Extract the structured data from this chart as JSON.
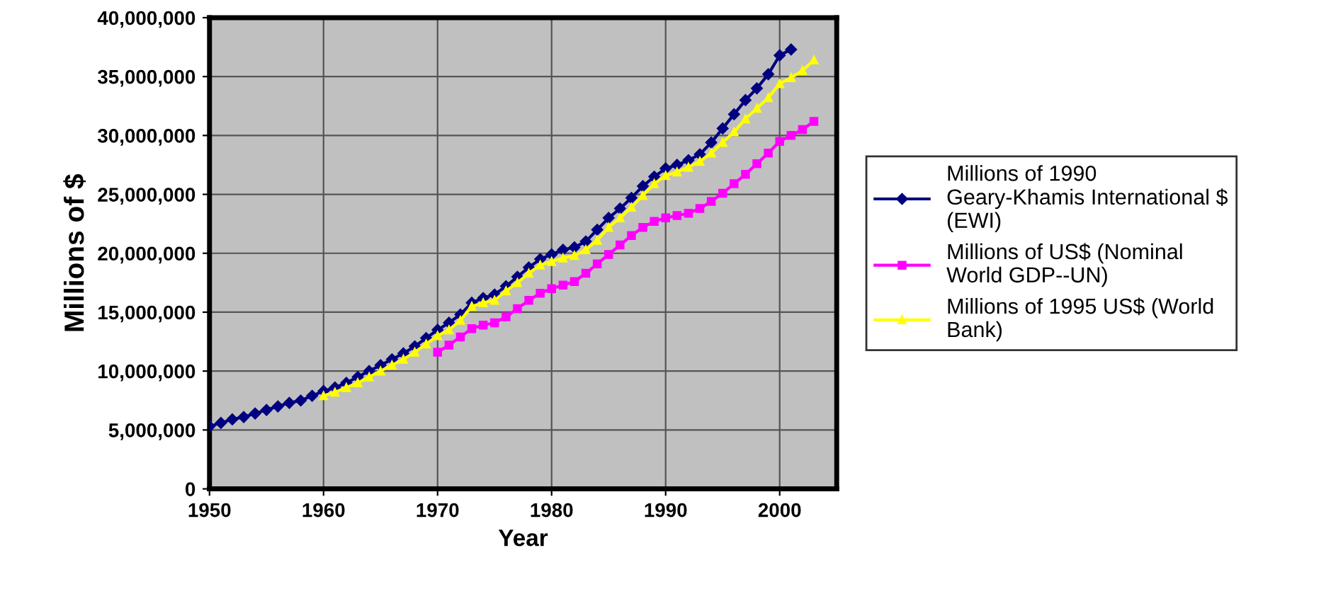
{
  "chart_data": {
    "type": "line",
    "xlabel": "Year",
    "ylabel": "Millions of $",
    "xlim": [
      1950,
      2005
    ],
    "xticks": [
      1950,
      1960,
      1970,
      1980,
      1990,
      2000
    ],
    "ylim": [
      0,
      40000000
    ],
    "yticks": [
      {
        "value": 0,
        "label": "0"
      },
      {
        "value": 5000000,
        "label": "5,000,000"
      },
      {
        "value": 10000000,
        "label": "10,000,000"
      },
      {
        "value": 15000000,
        "label": "15,000,000"
      },
      {
        "value": 20000000,
        "label": "20,000,000"
      },
      {
        "value": 25000000,
        "label": "25,000,000"
      },
      {
        "value": 30000000,
        "label": "30,000,000"
      },
      {
        "value": 35000000,
        "label": "35,000,000"
      },
      {
        "value": 40000000,
        "label": "40,000,000"
      }
    ],
    "grid": true,
    "legend": "right",
    "series": [
      {
        "name": "Millions of 1990 Geary-Khamis International $ (EWI)",
        "color": "#000080",
        "marker": "diamond",
        "x": [
          1950,
          1951,
          1952,
          1953,
          1954,
          1955,
          1956,
          1957,
          1958,
          1959,
          1960,
          1961,
          1962,
          1963,
          1964,
          1965,
          1966,
          1967,
          1968,
          1969,
          1970,
          1971,
          1972,
          1973,
          1974,
          1975,
          1976,
          1977,
          1978,
          1979,
          1980,
          1981,
          1982,
          1983,
          1984,
          1985,
          1986,
          1987,
          1988,
          1989,
          1990,
          1991,
          1992,
          1993,
          1994,
          1995,
          1996,
          1997,
          1998,
          1999,
          2000,
          2001
        ],
        "values": [
          5300000,
          5600000,
          5900000,
          6100000,
          6400000,
          6700000,
          7000000,
          7300000,
          7500000,
          7900000,
          8300000,
          8600000,
          9000000,
          9500000,
          10000000,
          10500000,
          11000000,
          11500000,
          12100000,
          12800000,
          13500000,
          14100000,
          14800000,
          15800000,
          16200000,
          16500000,
          17200000,
          18000000,
          18800000,
          19500000,
          19900000,
          20300000,
          20500000,
          21000000,
          22000000,
          23000000,
          23800000,
          24700000,
          25700000,
          26500000,
          27200000,
          27500000,
          27900000,
          28400000,
          29400000,
          30600000,
          31800000,
          33000000,
          34000000,
          35200000,
          36800000,
          37300000
        ]
      },
      {
        "name": "Millions of US$ (Nominal World GDP--UN)",
        "color": "#ff00ff",
        "marker": "square",
        "x": [
          1970,
          1971,
          1972,
          1973,
          1974,
          1975,
          1976,
          1977,
          1978,
          1979,
          1980,
          1981,
          1982,
          1983,
          1984,
          1985,
          1986,
          1987,
          1988,
          1989,
          1990,
          1991,
          1992,
          1993,
          1994,
          1995,
          1996,
          1997,
          1998,
          1999,
          2000,
          2001,
          2002,
          2003
        ],
        "values": [
          11600000,
          12200000,
          12900000,
          13600000,
          13900000,
          14100000,
          14600000,
          15300000,
          16000000,
          16600000,
          17000000,
          17300000,
          17600000,
          18300000,
          19100000,
          19900000,
          20700000,
          21500000,
          22200000,
          22700000,
          23000000,
          23200000,
          23400000,
          23800000,
          24400000,
          25100000,
          25900000,
          26700000,
          27600000,
          28500000,
          29500000,
          30000000,
          30500000,
          31200000
        ]
      },
      {
        "name": "Millions of 1995 US$ (World Bank)",
        "color": "#ffff00",
        "marker": "triangle",
        "x": [
          1960,
          1961,
          1962,
          1963,
          1964,
          1965,
          1966,
          1967,
          1968,
          1969,
          1970,
          1971,
          1972,
          1973,
          1974,
          1975,
          1976,
          1977,
          1978,
          1979,
          1980,
          1981,
          1982,
          1983,
          1984,
          1985,
          1986,
          1987,
          1988,
          1989,
          1990,
          1991,
          1992,
          1993,
          1994,
          1995,
          1996,
          1997,
          1998,
          1999,
          2000,
          2001,
          2002,
          2003
        ],
        "values": [
          7900000,
          8200000,
          8600000,
          9000000,
          9500000,
          10000000,
          10500000,
          11000000,
          11600000,
          12300000,
          13000000,
          13500000,
          14300000,
          15500000,
          15800000,
          16000000,
          16800000,
          17500000,
          18300000,
          19000000,
          19300000,
          19600000,
          19800000,
          20300000,
          21100000,
          22200000,
          23000000,
          23900000,
          24900000,
          25900000,
          26600000,
          26900000,
          27300000,
          27800000,
          28500000,
          29400000,
          30300000,
          31400000,
          32300000,
          33200000,
          34400000,
          34900000,
          35500000,
          36400000
        ]
      }
    ]
  }
}
